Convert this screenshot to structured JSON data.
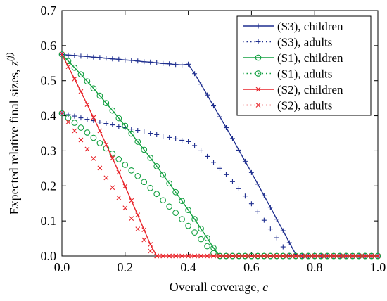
{
  "chart_data": {
    "type": "line",
    "xlabel": "Overall coverage, ",
    "xlabel_var": "c",
    "ylabel": "Expected relative final sizes, ",
    "ylabel_var": "z",
    "ylabel_sup": "(j)",
    "xlim": [
      0.0,
      1.0
    ],
    "ylim": [
      0.0,
      0.7
    ],
    "x_ticks": [
      "0.0",
      "0.2",
      "0.4",
      "0.6",
      "0.8",
      "1.0"
    ],
    "y_ticks": [
      "0.0",
      "0.1",
      "0.2",
      "0.3",
      "0.4",
      "0.5",
      "0.6",
      "0.7"
    ],
    "grid": false,
    "legend_position": "top-right",
    "x": [
      0.0,
      0.02,
      0.04,
      0.06,
      0.08,
      0.1,
      0.12,
      0.14,
      0.16,
      0.18,
      0.2,
      0.22,
      0.24,
      0.26,
      0.28,
      0.3,
      0.32,
      0.34,
      0.36,
      0.38,
      0.4,
      0.42,
      0.44,
      0.46,
      0.48,
      0.5,
      0.52,
      0.54,
      0.56,
      0.58,
      0.6,
      0.62,
      0.64,
      0.66,
      0.68,
      0.7,
      0.72,
      0.74,
      0.76,
      0.78,
      0.8,
      0.82,
      0.84,
      0.86,
      0.88,
      0.9,
      0.92,
      0.94,
      0.96,
      0.98,
      1.0
    ],
    "series": [
      {
        "name": "(S3), children",
        "color": "#1f2f8f",
        "linestyle": "solid",
        "marker": "plus",
        "values": [
          0.575,
          0.573,
          0.572,
          0.57,
          0.569,
          0.567,
          0.566,
          0.564,
          0.562,
          0.561,
          0.559,
          0.558,
          0.556,
          0.554,
          0.553,
          0.551,
          0.549,
          0.548,
          0.546,
          0.545,
          0.547,
          0.52,
          0.49,
          0.459,
          0.428,
          0.397,
          0.366,
          0.335,
          0.302,
          0.27,
          0.238,
          0.205,
          0.172,
          0.139,
          0.105,
          0.072,
          0.038,
          0.005,
          0.0,
          0.0,
          0.0,
          0.0,
          0.0,
          0.0,
          0.0,
          0.0,
          0.0,
          0.0,
          0.0,
          0.0,
          0.0
        ]
      },
      {
        "name": "(S3), adults",
        "color": "#1f2f8f",
        "linestyle": "dotted",
        "marker": "plus",
        "values": [
          0.407,
          0.403,
          0.399,
          0.394,
          0.39,
          0.386,
          0.382,
          0.378,
          0.374,
          0.37,
          0.366,
          0.362,
          0.358,
          0.354,
          0.35,
          0.346,
          0.342,
          0.338,
          0.334,
          0.33,
          0.326,
          0.315,
          0.3,
          0.284,
          0.267,
          0.25,
          0.232,
          0.212,
          0.192,
          0.171,
          0.149,
          0.126,
          0.102,
          0.077,
          0.052,
          0.026,
          0.002,
          0.0,
          0.0,
          0.0,
          0.0,
          0.0,
          0.0,
          0.0,
          0.0,
          0.0,
          0.0,
          0.0,
          0.0,
          0.0,
          0.0
        ]
      },
      {
        "name": "(S1), children",
        "color": "#12a040",
        "linestyle": "solid",
        "marker": "circle",
        "values": [
          0.575,
          0.556,
          0.537,
          0.518,
          0.498,
          0.478,
          0.457,
          0.436,
          0.415,
          0.393,
          0.371,
          0.349,
          0.326,
          0.303,
          0.28,
          0.256,
          0.232,
          0.207,
          0.182,
          0.157,
          0.131,
          0.105,
          0.078,
          0.051,
          0.023,
          0.0,
          0.0,
          0.0,
          0.0,
          0.0,
          0.0,
          0.0,
          0.0,
          0.0,
          0.0,
          0.0,
          0.0,
          0.0,
          0.0,
          0.0,
          0.0,
          0.0,
          0.0,
          0.0,
          0.0,
          0.0,
          0.0,
          0.0,
          0.0,
          0.0,
          0.0
        ]
      },
      {
        "name": "(S1), adults",
        "color": "#12a040",
        "linestyle": "dotted",
        "marker": "circle",
        "values": [
          0.407,
          0.394,
          0.38,
          0.366,
          0.352,
          0.337,
          0.322,
          0.307,
          0.292,
          0.276,
          0.26,
          0.244,
          0.228,
          0.211,
          0.194,
          0.177,
          0.159,
          0.141,
          0.123,
          0.105,
          0.086,
          0.067,
          0.048,
          0.028,
          0.008,
          0.0,
          0.0,
          0.0,
          0.0,
          0.0,
          0.0,
          0.0,
          0.0,
          0.0,
          0.0,
          0.0,
          0.0,
          0.0,
          0.0,
          0.0,
          0.0,
          0.0,
          0.0,
          0.0,
          0.0,
          0.0,
          0.0,
          0.0,
          0.0,
          0.0,
          0.0
        ]
      },
      {
        "name": "(S2), children",
        "color": "#e8242a",
        "linestyle": "solid",
        "marker": "x",
        "values": [
          0.575,
          0.54,
          0.505,
          0.469,
          0.432,
          0.395,
          0.357,
          0.318,
          0.279,
          0.239,
          0.199,
          0.158,
          0.117,
          0.075,
          0.033,
          0.0,
          0.0,
          0.0,
          0.0,
          0.0,
          0.0,
          0.0,
          0.0,
          0.0,
          0.0,
          0.0,
          0.0,
          0.0,
          0.0,
          0.0,
          0.0,
          0.0,
          0.0,
          0.0,
          0.0,
          0.0,
          0.0,
          0.0,
          0.0,
          0.0,
          0.0,
          0.0,
          0.0,
          0.0,
          0.0,
          0.0,
          0.0,
          0.0,
          0.0,
          0.0,
          0.0
        ]
      },
      {
        "name": "(S2), adults",
        "color": "#e8242a",
        "linestyle": "dotted",
        "marker": "x",
        "values": [
          0.407,
          0.382,
          0.357,
          0.331,
          0.305,
          0.278,
          0.251,
          0.223,
          0.195,
          0.166,
          0.137,
          0.107,
          0.077,
          0.046,
          0.014,
          0.0,
          0.0,
          0.0,
          0.0,
          0.0,
          0.0,
          0.0,
          0.0,
          0.0,
          0.0,
          0.0,
          0.0,
          0.0,
          0.0,
          0.0,
          0.0,
          0.0,
          0.0,
          0.0,
          0.0,
          0.0,
          0.0,
          0.0,
          0.0,
          0.0,
          0.0,
          0.0,
          0.0,
          0.0,
          0.0,
          0.0,
          0.0,
          0.0,
          0.0,
          0.0,
          0.0
        ]
      }
    ]
  }
}
